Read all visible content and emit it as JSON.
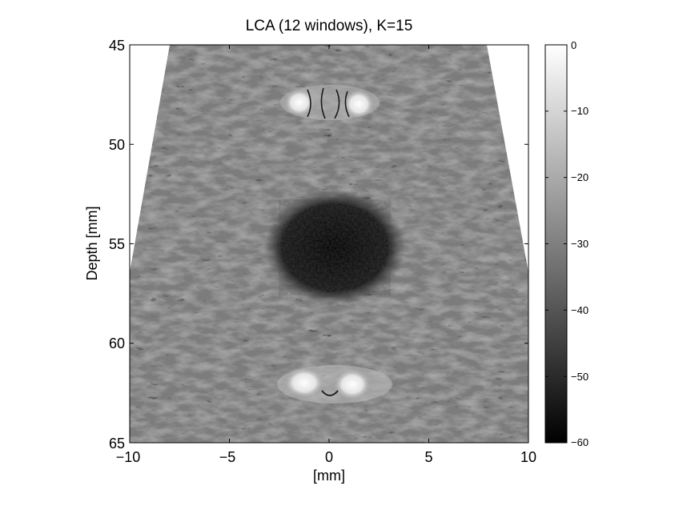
{
  "figure": {
    "title": "LCA (12 windows), K=15",
    "xlabel": "[mm]",
    "ylabel": "Depth [mm]",
    "x_ticks": [
      "−10",
      "−5",
      "0",
      "5",
      "10"
    ],
    "y_ticks": [
      "45",
      "50",
      "55",
      "60",
      "65"
    ],
    "colorbar_ticks": [
      "0",
      "−10",
      "−20",
      "−30",
      "−40",
      "−50",
      "−60"
    ]
  },
  "chart_data": {
    "type": "heatmap",
    "title": "LCA (12 windows), K=15",
    "xlabel": "[mm]",
    "ylabel": "Depth [mm]",
    "xlim": [
      -10,
      10
    ],
    "ylim": [
      65,
      45
    ],
    "x_ticks": [
      -10,
      -5,
      0,
      5,
      10
    ],
    "y_ticks": [
      45,
      50,
      55,
      60,
      65
    ],
    "colorbar": {
      "range": [
        -60,
        0
      ],
      "ticks": [
        0,
        -10,
        -20,
        -30,
        -40,
        -50,
        -60
      ],
      "colormap": "gray"
    },
    "image_features": [
      {
        "kind": "bright-target",
        "x": -1.5,
        "y": 47.9
      },
      {
        "kind": "bright-target",
        "x": 1.5,
        "y": 47.9
      },
      {
        "kind": "anechoic-cyst",
        "x": 0.3,
        "y": 55.2,
        "radius": 3
      },
      {
        "kind": "bright-target",
        "x": -1.5,
        "y": 61.9
      },
      {
        "kind": "bright-target",
        "x": 1.5,
        "y": 61.9
      }
    ],
    "grid": false,
    "legend": "none"
  }
}
